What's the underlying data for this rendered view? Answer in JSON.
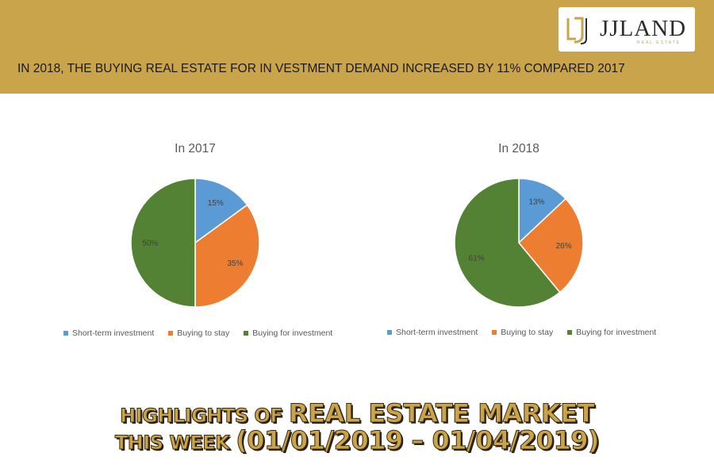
{
  "banner": {
    "headline": "IN 2018, THE BUYING REAL ESTATE FOR IN VESTMENT DEMAND INCREASED BY 11% COMPARED 2017",
    "logo": {
      "name": "JJLAND",
      "subtitle": "REAL ESTATE"
    }
  },
  "colors": {
    "banner": "#c9a44a",
    "short_term": "#5b9bd5",
    "buying_to_stay": "#ed7d31",
    "buying_for_investment": "#548235"
  },
  "chart_data": [
    {
      "type": "pie",
      "title": "In 2017",
      "labels": [
        "Short-term investment",
        "Buying to stay",
        "Buying for investment"
      ],
      "values": [
        15,
        35,
        50
      ],
      "data_labels": [
        "15%",
        "35%",
        "50%"
      ],
      "legend_position": "bottom"
    },
    {
      "type": "pie",
      "title": "In 2018",
      "labels": [
        "Short-term investment",
        "Buying to stay",
        "Buying for investment"
      ],
      "values": [
        13,
        26,
        61
      ],
      "data_labels": [
        "13%",
        "26%",
        "61%"
      ],
      "legend_position": "bottom"
    }
  ],
  "footer": {
    "line1_small": "HIGHLIGHTS OF ",
    "line1_big": "REAL ESTATE MARKET",
    "line2_small": "THIS WEEK ",
    "line2_big": "(01/01/2019 – 01/04/2019)"
  }
}
